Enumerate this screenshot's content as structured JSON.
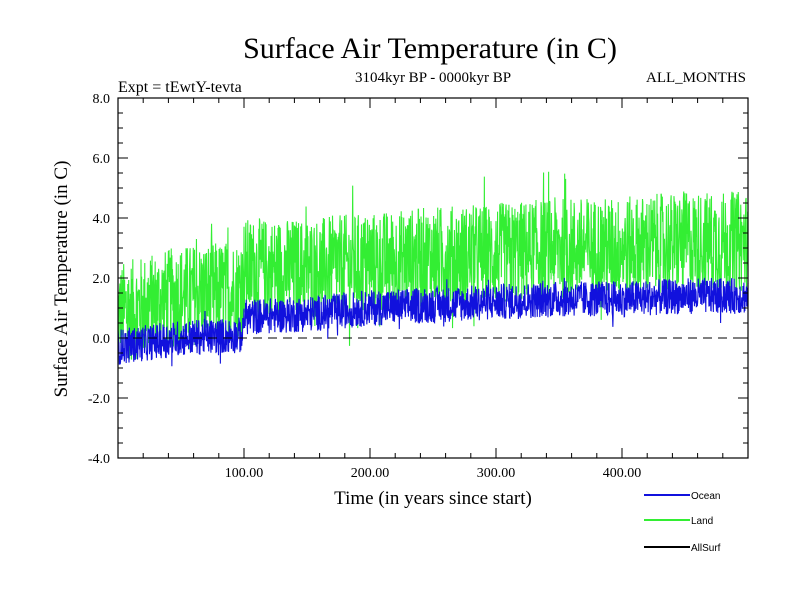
{
  "chart_data": {
    "type": "line",
    "title": "Surface Air Temperature (in C)",
    "subtitle": "3104kyr BP - 0000kyr BP",
    "left_label": "Expt = tEwtY-tevta",
    "right_label": "ALL_MONTHS",
    "xlabel": "Time (in years since start)",
    "ylabel": "Surface Air Temperature (in C)",
    "xlim": [
      0,
      500
    ],
    "ylim": [
      -4.0,
      8.0
    ],
    "x_ticks": [
      100,
      200,
      300,
      400
    ],
    "x_tick_labels": [
      "100.00",
      "200.00",
      "300.00",
      "400.00"
    ],
    "y_ticks": [
      -4,
      -2,
      0,
      2,
      4,
      6,
      8
    ],
    "y_tick_labels": [
      "-4.0",
      "-2.0",
      "0.0",
      "2.0",
      "4.0",
      "6.0",
      "8.0"
    ],
    "reference_line": {
      "y": 0.0,
      "style": "dashed"
    },
    "series": [
      {
        "name": "Land",
        "color": "#33ee33",
        "x": [
          0,
          50,
          99,
          100,
          150,
          200,
          250,
          300,
          350,
          400,
          450,
          500
        ],
        "values": [
          0.8,
          1.4,
          1.6,
          2.3,
          2.3,
          2.5,
          2.7,
          2.8,
          3.0,
          3.0,
          3.2,
          3.2
        ],
        "noise_amplitude": 1.7
      },
      {
        "name": "Ocean",
        "color": "#1111dd",
        "x": [
          0,
          50,
          99,
          100,
          150,
          200,
          250,
          300,
          350,
          400,
          450,
          500
        ],
        "values": [
          -0.3,
          0.0,
          0.1,
          0.7,
          0.8,
          1.0,
          1.1,
          1.2,
          1.3,
          1.3,
          1.4,
          1.4
        ],
        "noise_amplitude": 0.6
      },
      {
        "name": "AllSurf",
        "color": "#000000",
        "x": [
          0,
          500
        ],
        "values": [
          null,
          null
        ],
        "noise_amplitude": 0
      }
    ],
    "legend": {
      "position": "bottom-right",
      "entries": [
        "Ocean",
        "Land",
        "AllSurf"
      ]
    }
  }
}
